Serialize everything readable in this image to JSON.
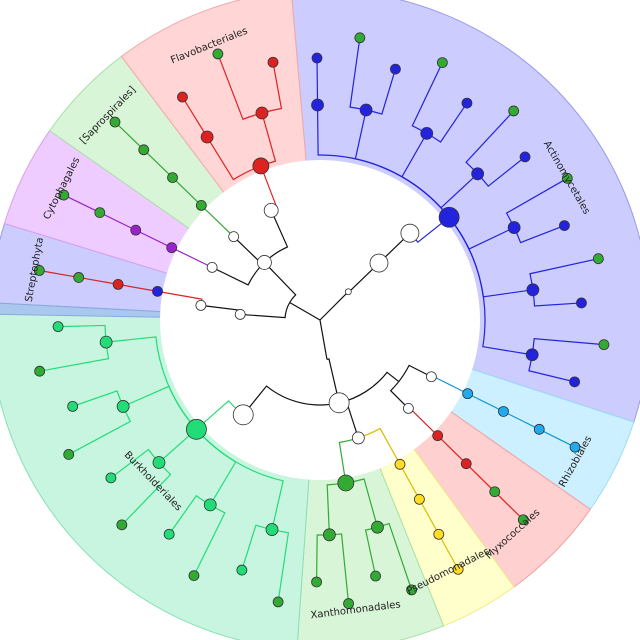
{
  "clades": [
    {
      "label": "Actinomycetales"
    },
    {
      "label": "Rhizobiales"
    },
    {
      "label": "Myxococcales"
    },
    {
      "label": "Pseudomonadales"
    },
    {
      "label": "Xanthomonadales"
    },
    {
      "label": "Burkholderiales"
    },
    {
      "label": "Streptophyta"
    },
    {
      "label": "Cytophagales"
    },
    {
      "label": "[Saprospirales]"
    },
    {
      "label": "Flavobacteriales"
    }
  ]
}
